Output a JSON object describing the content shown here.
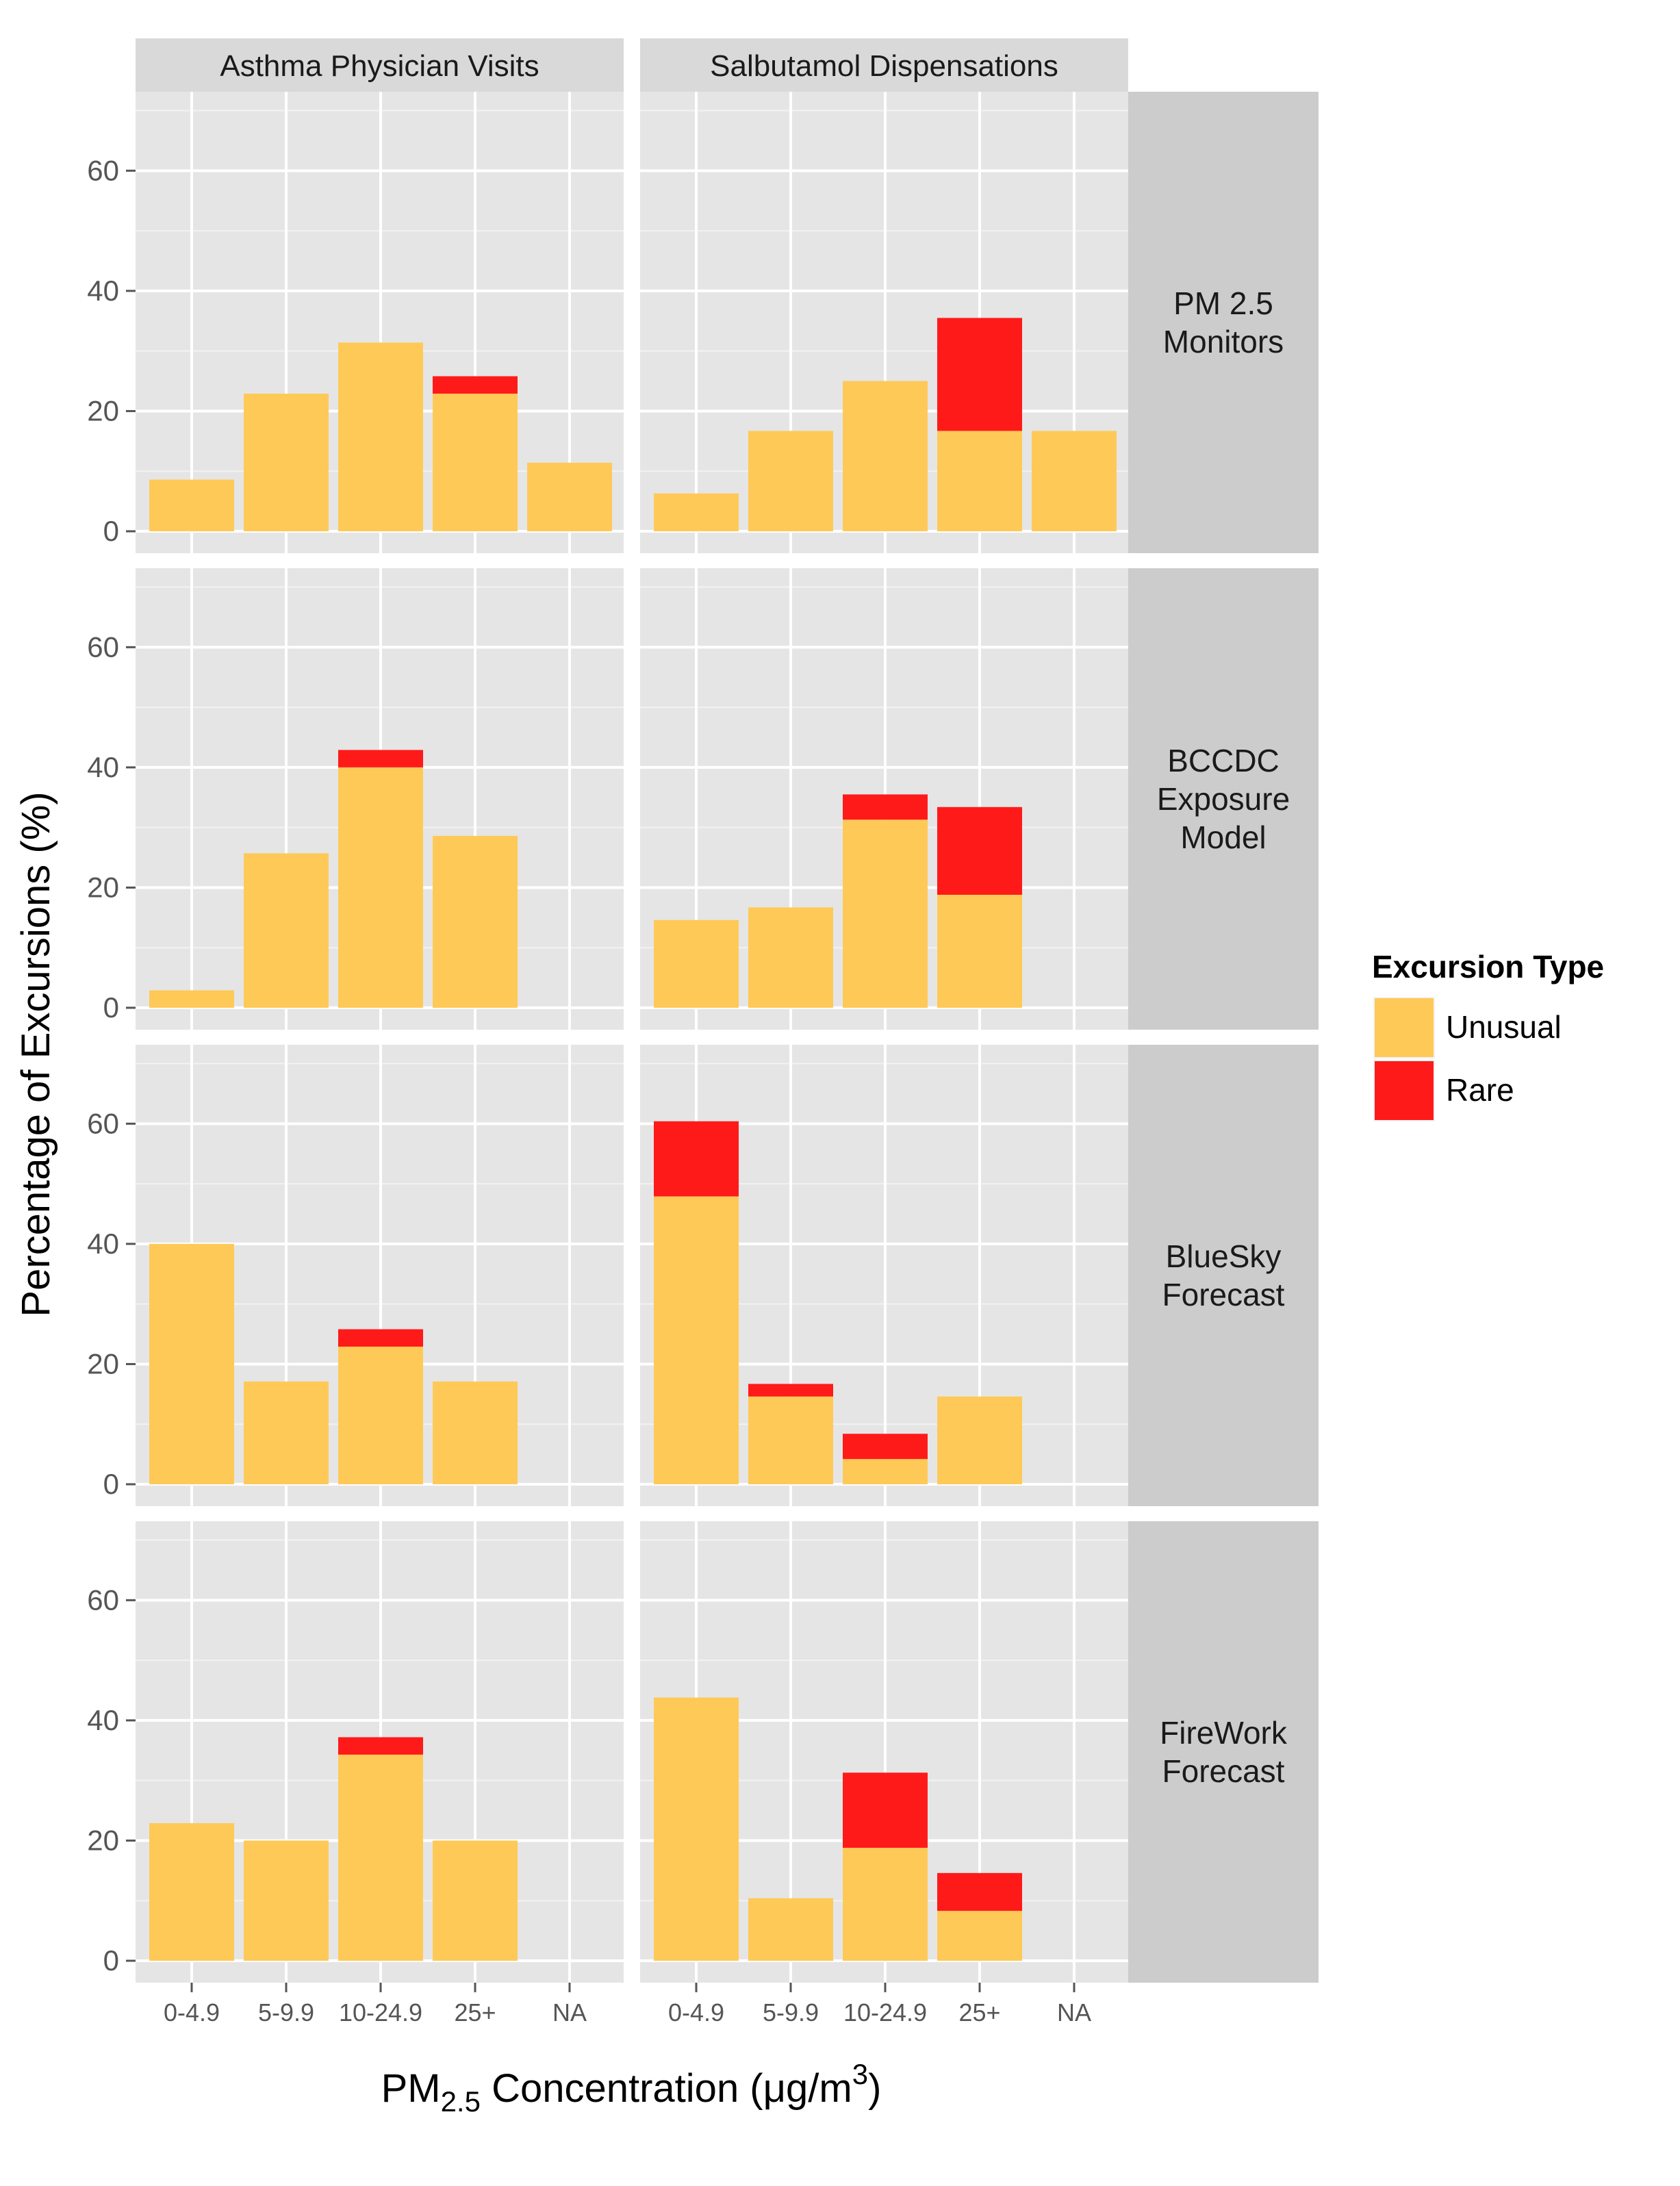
{
  "chart_data": {
    "type": "bar",
    "stacked": true,
    "facet_columns": [
      "Asthma Physician Visits",
      "Salbutamol Dispensations"
    ],
    "facet_rows": [
      [
        "PM 2.5",
        "Monitors"
      ],
      [
        "BCCDC",
        "Exposure",
        "Model"
      ],
      [
        "BlueSky",
        "Forecast"
      ],
      [
        "FireWork",
        "Forecast"
      ]
    ],
    "categories": [
      "0-4.9",
      "5-9.9",
      "10-24.9",
      "25+",
      "NA"
    ],
    "ylabel": "Percentage of Excursions (%)",
    "xlabel": {
      "prefix": "PM",
      "subscript": "2.5",
      "rest": " Concentration (",
      "mu": "μ",
      "unit": "g/m",
      "superscript": "3",
      "close": ")"
    },
    "ylim": [
      0,
      72
    ],
    "yticks": [
      0,
      20,
      40,
      60
    ],
    "legend": {
      "title": "Excursion Type",
      "position": "right",
      "entries": [
        {
          "name": "Unusual",
          "color": "#FFC957"
        },
        {
          "name": "Rare",
          "color": "#FF1A1A"
        }
      ]
    },
    "panels": [
      {
        "row": 0,
        "col": 0,
        "unusual": [
          8.6,
          22.9,
          31.4,
          22.9,
          11.4
        ],
        "rare": [
          0,
          0,
          0,
          2.9,
          0
        ]
      },
      {
        "row": 0,
        "col": 1,
        "unusual": [
          6.3,
          16.7,
          25.0,
          16.7,
          16.7
        ],
        "rare": [
          0,
          0,
          0,
          18.8,
          0
        ]
      },
      {
        "row": 1,
        "col": 0,
        "unusual": [
          2.9,
          25.7,
          40.0,
          28.6,
          0
        ],
        "rare": [
          0,
          0,
          2.9,
          0,
          0
        ]
      },
      {
        "row": 1,
        "col": 1,
        "unusual": [
          14.6,
          16.7,
          31.3,
          18.8,
          0
        ],
        "rare": [
          0,
          0,
          4.2,
          14.6,
          0
        ]
      },
      {
        "row": 2,
        "col": 0,
        "unusual": [
          40.0,
          17.1,
          22.9,
          17.1,
          0
        ],
        "rare": [
          0,
          0,
          2.9,
          0,
          0
        ]
      },
      {
        "row": 2,
        "col": 1,
        "unusual": [
          47.9,
          14.6,
          4.2,
          14.6,
          0
        ],
        "rare": [
          12.5,
          2.1,
          4.2,
          0,
          0
        ]
      },
      {
        "row": 3,
        "col": 0,
        "unusual": [
          22.9,
          20.0,
          34.3,
          20.0,
          0
        ],
        "rare": [
          0,
          0,
          2.9,
          0,
          0
        ]
      },
      {
        "row": 3,
        "col": 1,
        "unusual": [
          43.8,
          10.4,
          18.8,
          8.3,
          0
        ],
        "rare": [
          0,
          0,
          12.5,
          6.3,
          0
        ]
      }
    ]
  }
}
